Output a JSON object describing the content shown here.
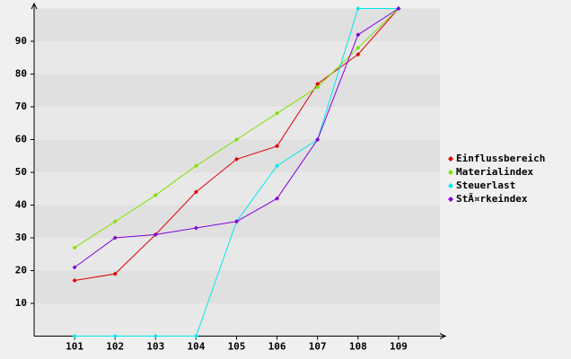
{
  "chart_data": {
    "type": "line",
    "categories": [
      "101",
      "102",
      "103",
      "104",
      "105",
      "106",
      "107",
      "108",
      "109"
    ],
    "series": [
      {
        "name": "Einflussbereich",
        "color": "#e00000",
        "values": [
          17,
          19,
          31,
          44,
          54,
          58,
          77,
          86,
          100
        ]
      },
      {
        "name": "Materialindex",
        "color": "#80e000",
        "values": [
          27,
          35,
          43,
          52,
          60,
          68,
          76,
          88,
          100
        ]
      },
      {
        "name": "Steuerlast",
        "color": "#00e8f0",
        "values": [
          0,
          0,
          0,
          0,
          35,
          52,
          60,
          100,
          100
        ]
      },
      {
        "name": "StÃ¤rkeindex",
        "color": "#8000e0",
        "values": [
          21,
          30,
          31,
          33,
          35,
          42,
          60,
          92,
          100
        ]
      }
    ],
    "ylim": [
      0,
      100
    ],
    "yticks": [
      10,
      20,
      30,
      40,
      50,
      60,
      70,
      80,
      90
    ],
    "grid": true,
    "legend": "right"
  }
}
